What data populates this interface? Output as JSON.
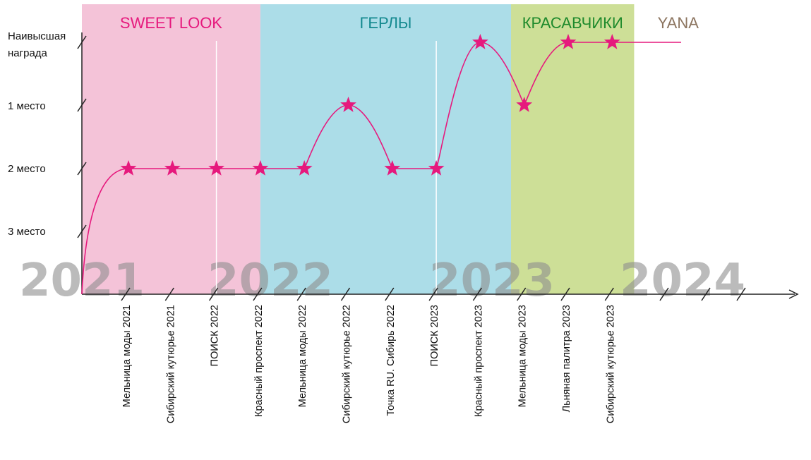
{
  "chart_data": {
    "type": "line",
    "bands": [
      {
        "label": "SWEET LOOK",
        "color": "#f4c3d8",
        "label_color": "#e6197d",
        "start": 0,
        "end": 4
      },
      {
        "label": "ГЕРЛЫ",
        "color": "#acdde8",
        "label_color": "#13898f",
        "start": 4,
        "end": 9.7
      },
      {
        "label": "КРАСАВЧИКИ",
        "color": "#cddf97",
        "label_color": "#1e8a2c",
        "start": 9.7,
        "end": 12.5
      },
      {
        "label": "YANA",
        "color": "#ffffff",
        "label_color": "#8c7560",
        "start": 12.5,
        "end": 14.5
      }
    ],
    "years": [
      "2021",
      "2022",
      "2023",
      "2024"
    ],
    "y_levels": [
      "3 место",
      "2 место",
      "1 место",
      "Наивысшая награда"
    ],
    "categories": [
      "Мельница моды 2021",
      "Сибирский кутюрье 2021",
      "ПОИСК 2022",
      "Красный проспект 2022",
      "Мельница моды 2022",
      "Сибирский кутюрье 2022",
      "Точка RU. Сибирь 2022",
      "ПОИСК 2023",
      "Красный проспект 2023",
      "Мельница моды 2023",
      "Льняная палитра 2023",
      "Сибирский кутюрье 2023"
    ],
    "series": [
      {
        "values": [
          "2 место",
          "2 место",
          "2 место",
          "2 место",
          "2 место",
          "1 место",
          "2 место",
          "2 место",
          "Наивысшая награда",
          "1 место",
          "Наивысшая награда",
          "Наивысшая награда"
        ]
      }
    ],
    "colors": {
      "line": "#e6197d",
      "star": "#e6197d",
      "axis": "#222222",
      "year": "#8f8f8f"
    }
  }
}
